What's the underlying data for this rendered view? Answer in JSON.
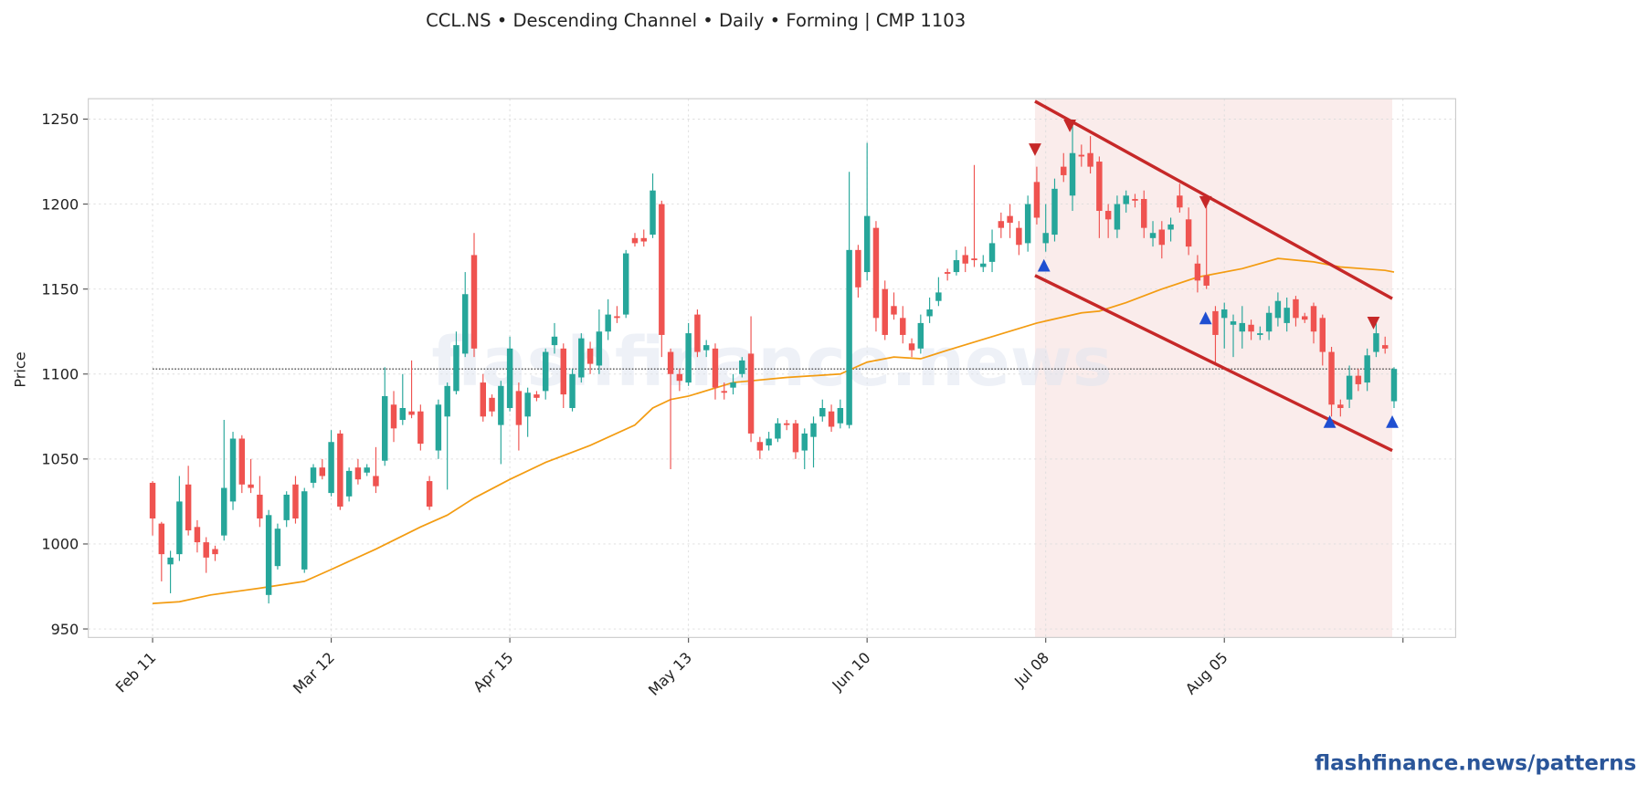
{
  "chart_data": {
    "type": "candlestick",
    "title": "CCL.NS  •  Descending Channel  •  Daily  •  Forming  |  CMP 1103",
    "ylabel": "Price",
    "watermark": "flashfinance.news",
    "footer": "flashfinance.news/patterns",
    "xlim": [
      -7.2,
      145.9
    ],
    "ylim": [
      945,
      1262
    ],
    "xticks": [
      0,
      20,
      40,
      60,
      80,
      100,
      120,
      140
    ],
    "xtick_labels": [
      "Feb 11",
      "Mar 12",
      "Apr 15",
      "May 13",
      "Jun 10",
      "Jul 08",
      "Aug 05",
      null
    ],
    "yticks": [
      950,
      1000,
      1050,
      1100,
      1150,
      1200,
      1250
    ],
    "grid": true,
    "up_color": "#26a69a",
    "down_color": "#ef5350",
    "open": [
      1036,
      1012,
      988,
      994,
      1035,
      1010,
      1001,
      997,
      1005,
      1025,
      1062,
      1035,
      1029,
      970,
      987,
      1014,
      1035,
      985,
      1036,
      1045,
      1030,
      1065,
      1028,
      1045,
      1042,
      1040,
      1049,
      1082,
      1073,
      1078,
      1078,
      1037,
      1055,
      1075,
      1090,
      1112,
      1170,
      1095,
      1086,
      1070,
      1080,
      1090,
      1075,
      1088,
      1090,
      1117,
      1115,
      1080,
      1098,
      1115,
      1105,
      1125,
      1134,
      1135,
      1180,
      1180,
      1182,
      1200,
      1113,
      1100,
      1095,
      1135,
      1114,
      1115,
      1090,
      1092,
      1100,
      1112,
      1060,
      1058,
      1062,
      1071,
      1071,
      1055,
      1063,
      1075,
      1078,
      1071,
      1070,
      1173,
      1160,
      1186,
      1150,
      1140,
      1133,
      1118,
      1115,
      1134,
      1143,
      1160,
      1160,
      1170,
      1168,
      1163,
      1166,
      1190,
      1193,
      1186,
      1177,
      1213,
      1177,
      1182,
      1222,
      1205,
      1229,
      1230,
      1225,
      1196,
      1185,
      1200,
      1203,
      1203,
      1180,
      1185,
      1185,
      1205,
      1191,
      1165,
      1158,
      1137,
      1133,
      1129,
      1125,
      1129,
      1123,
      1125,
      1133,
      1130,
      1144,
      1134,
      1140,
      1133,
      1113,
      1082,
      1085,
      1099,
      1095,
      1113,
      1117,
      1084
    ],
    "high": [
      1037,
      1013,
      996,
      1040,
      1046,
      1014,
      1004,
      999,
      1073,
      1066,
      1064,
      1050,
      1040,
      1020,
      1012,
      1031,
      1040,
      1033,
      1047,
      1050,
      1067,
      1067,
      1045,
      1050,
      1047,
      1057,
      1104,
      1090,
      1100,
      1108,
      1082,
      1040,
      1085,
      1095,
      1125,
      1160,
      1183,
      1100,
      1088,
      1096,
      1122,
      1095,
      1092,
      1090,
      1115,
      1130,
      1118,
      1103,
      1124,
      1119,
      1138,
      1144,
      1140,
      1173,
      1183,
      1185,
      1218,
      1202,
      1115,
      1103,
      1130,
      1138,
      1120,
      1118,
      1095,
      1100,
      1110,
      1134,
      1063,
      1066,
      1074,
      1073,
      1073,
      1068,
      1075,
      1085,
      1082,
      1085,
      1219,
      1176,
      1236,
      1190,
      1155,
      1148,
      1140,
      1121,
      1135,
      1145,
      1157,
      1162,
      1173,
      1175,
      1223,
      1170,
      1185,
      1195,
      1200,
      1190,
      1205,
      1222,
      1200,
      1215,
      1230,
      1246,
      1235,
      1240,
      1228,
      1200,
      1205,
      1208,
      1206,
      1208,
      1190,
      1190,
      1192,
      1212,
      1198,
      1170,
      1200,
      1140,
      1142,
      1135,
      1140,
      1132,
      1128,
      1140,
      1148,
      1145,
      1146,
      1136,
      1142,
      1135,
      1116,
      1085,
      1105,
      1103,
      1115,
      1130,
      1122,
      1104
    ],
    "low": [
      1005,
      978,
      971,
      990,
      1005,
      995,
      983,
      990,
      1002,
      1020,
      1030,
      1030,
      1010,
      965,
      985,
      1010,
      1012,
      983,
      1033,
      1038,
      1028,
      1020,
      1025,
      1035,
      1040,
      1030,
      1046,
      1060,
      1070,
      1074,
      1055,
      1020,
      1050,
      1032,
      1088,
      1110,
      1110,
      1072,
      1075,
      1047,
      1078,
      1055,
      1063,
      1084,
      1085,
      1112,
      1080,
      1078,
      1095,
      1100,
      1100,
      1120,
      1130,
      1133,
      1175,
      1175,
      1180,
      1110,
      1044,
      1090,
      1093,
      1110,
      1110,
      1085,
      1085,
      1088,
      1098,
      1060,
      1050,
      1055,
      1060,
      1067,
      1050,
      1044,
      1045,
      1072,
      1066,
      1068,
      1068,
      1145,
      1155,
      1125,
      1120,
      1132,
      1118,
      1110,
      1112,
      1130,
      1140,
      1155,
      1158,
      1160,
      1163,
      1160,
      1160,
      1180,
      1180,
      1170,
      1172,
      1188,
      1172,
      1178,
      1213,
      1196,
      1222,
      1218,
      1180,
      1180,
      1180,
      1195,
      1198,
      1180,
      1175,
      1168,
      1178,
      1195,
      1170,
      1148,
      1150,
      1105,
      1115,
      1110,
      1115,
      1120,
      1120,
      1120,
      1128,
      1125,
      1128,
      1130,
      1118,
      1105,
      1075,
      1075,
      1080,
      1090,
      1090,
      1110,
      1112,
      1080
    ],
    "close": [
      1015,
      994,
      992,
      1025,
      1008,
      1001,
      992,
      994,
      1033,
      1062,
      1035,
      1033,
      1015,
      1017,
      1009,
      1029,
      1015,
      1031,
      1045,
      1040,
      1060,
      1022,
      1043,
      1038,
      1045,
      1034,
      1087,
      1068,
      1080,
      1076,
      1059,
      1022,
      1082,
      1093,
      1117,
      1147,
      1115,
      1075,
      1078,
      1093,
      1115,
      1070,
      1089,
      1086,
      1113,
      1122,
      1088,
      1100,
      1121,
      1106,
      1125,
      1135,
      1133,
      1171,
      1177,
      1178,
      1208,
      1123,
      1100,
      1096,
      1124,
      1113,
      1117,
      1092,
      1089,
      1095,
      1108,
      1065,
      1055,
      1062,
      1071,
      1070,
      1054,
      1065,
      1071,
      1080,
      1069,
      1080,
      1173,
      1151,
      1193,
      1133,
      1123,
      1135,
      1123,
      1114,
      1130,
      1138,
      1148,
      1159,
      1167,
      1165,
      1167,
      1165,
      1177,
      1186,
      1189,
      1176,
      1200,
      1192,
      1183,
      1209,
      1217,
      1230,
      1228,
      1222,
      1196,
      1191,
      1200,
      1205,
      1202,
      1186,
      1183,
      1176,
      1188,
      1198,
      1175,
      1155,
      1152,
      1123,
      1138,
      1131,
      1130,
      1125,
      1124,
      1136,
      1143,
      1139,
      1133,
      1132,
      1125,
      1113,
      1082,
      1080,
      1099,
      1094,
      1111,
      1124,
      1115,
      1103
    ],
    "moving_average": {
      "color": "#f39c12",
      "x": [
        0,
        3,
        6.5,
        12,
        17,
        20,
        25,
        30,
        33,
        36,
        40,
        44,
        49,
        54,
        56,
        58,
        60,
        65,
        71,
        77,
        80,
        83,
        86,
        89,
        94,
        99,
        104,
        106,
        109,
        113,
        117,
        122,
        126,
        130,
        133,
        138,
        139
      ],
      "values": [
        965,
        966,
        970,
        974,
        978,
        985,
        997,
        1010,
        1017,
        1027,
        1038,
        1048,
        1058,
        1070,
        1080,
        1085,
        1087,
        1095,
        1098,
        1100,
        1107,
        1110,
        1109,
        1114,
        1122,
        1130,
        1136,
        1137,
        1142,
        1150,
        1157,
        1162,
        1168,
        1166,
        1163,
        1161,
        1160
      ]
    },
    "zone": {
      "x": [
        98.8,
        138.8
      ],
      "color": "#f5d5d2"
    },
    "channel": {
      "color": "#c62828",
      "upper": {
        "x": [
          98.8,
          138.8
        ],
        "values": [
          1260.5,
          1144.4
        ]
      },
      "lower": {
        "x": [
          98.8,
          138.8
        ],
        "values": [
          1158,
          1055
        ]
      }
    },
    "cmp_line": {
      "x": [
        0,
        139
      ],
      "value": 1103
    },
    "peaks": {
      "color": "#c62828",
      "x": [
        98.8,
        102.7,
        117.9,
        136.7
      ],
      "values": [
        1232,
        1246,
        1201,
        1130
      ]
    },
    "troughs": {
      "color": "#1f4fd1",
      "x": [
        99.8,
        117.9,
        131.8,
        138.8
      ],
      "values": [
        1164,
        1133,
        1072,
        1072
      ]
    }
  }
}
